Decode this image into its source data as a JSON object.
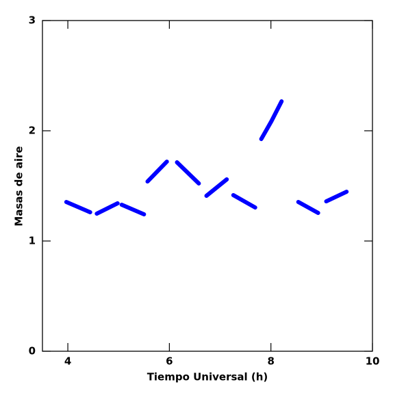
{
  "chart_data": {
    "type": "line",
    "xlabel": "Tiempo Universal (h)",
    "ylabel": "Masas de aire",
    "x": [
      3.97,
      4.44,
      null,
      4.57,
      4.98,
      null,
      5.06,
      5.5,
      null,
      5.57,
      5.95,
      null,
      6.15,
      6.58,
      null,
      6.73,
      7.13,
      null,
      7.26,
      7.69,
      null,
      7.81,
      8.01,
      8.21,
      null,
      8.54,
      8.93,
      null,
      9.09,
      9.49
    ],
    "values": [
      1.354,
      1.261,
      null,
      1.248,
      1.342,
      null,
      1.329,
      1.242,
      null,
      1.54,
      1.72,
      null,
      1.714,
      1.522,
      null,
      1.41,
      1.559,
      null,
      1.416,
      1.304,
      null,
      1.925,
      2.087,
      2.267,
      null,
      1.354,
      1.255,
      null,
      1.36,
      1.447
    ],
    "color": "#0000ff",
    "xlim": [
      3.5,
      10
    ],
    "xticks": [
      4,
      6,
      8,
      10
    ],
    "ylim": [
      0,
      3
    ],
    "yticks": [
      0,
      1,
      2,
      3
    ]
  }
}
